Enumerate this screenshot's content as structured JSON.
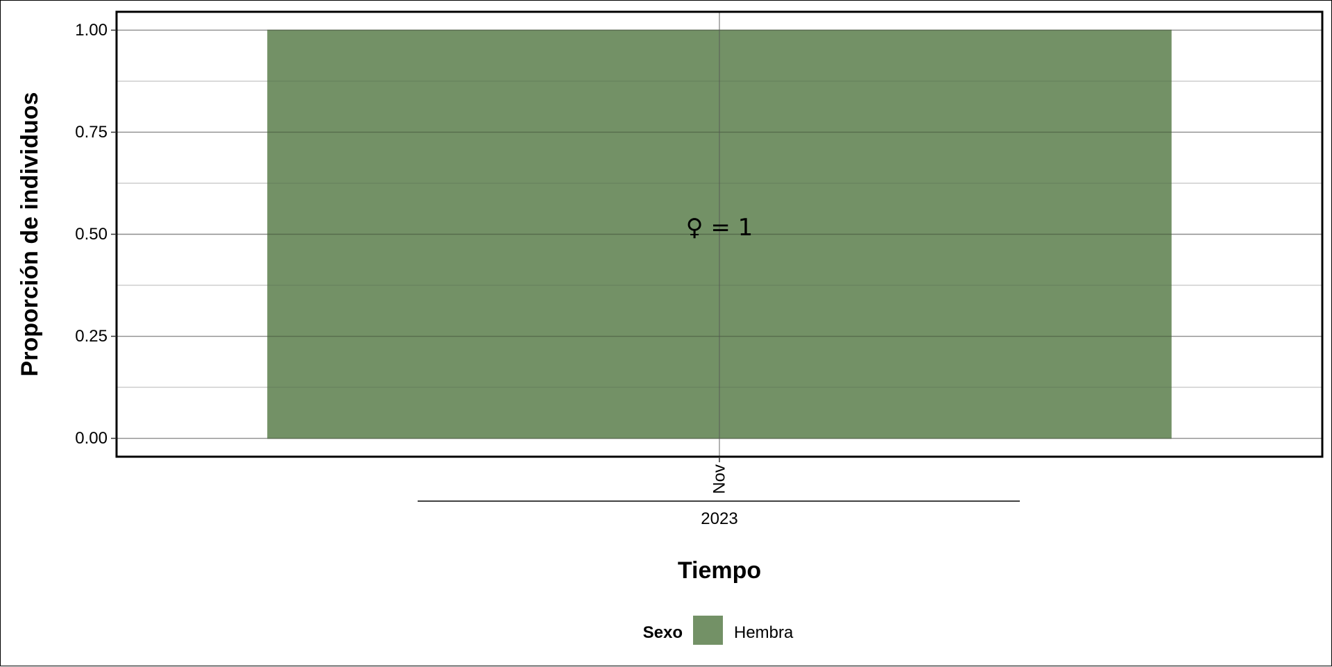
{
  "chart_data": {
    "type": "bar",
    "categories": [
      "Nov"
    ],
    "group_label": "2023",
    "series": [
      {
        "name": "Hembra",
        "values": [
          1.0
        ],
        "color": "#739166"
      }
    ],
    "bar_labels": [
      "♀ = 1"
    ],
    "xlabel": "Tiempo",
    "ylabel": "Proporción de individuos",
    "ylim": [
      -0.045,
      1.045
    ],
    "yticks": [
      0.0,
      0.25,
      0.5,
      0.75,
      1.0
    ],
    "ytick_labels": [
      "0.00",
      "0.25",
      "0.50",
      "0.75",
      "1.00"
    ],
    "grid": true,
    "legend": {
      "title": "Sexo",
      "position": "bottom"
    }
  }
}
